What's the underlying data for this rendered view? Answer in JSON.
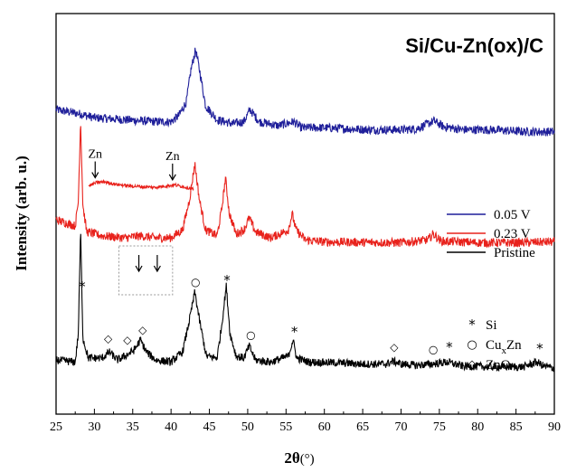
{
  "chart_data": {
    "type": "line",
    "title": "Si/Cu-Zn(ox)/C",
    "xlabel": "2θ(°)",
    "xlabel_parts": {
      "main": "2θ",
      "unit": "(°)"
    },
    "ylabel": "Intensity (arb. u.)",
    "xlim": [
      25,
      90
    ],
    "xticks": [
      25,
      30,
      35,
      40,
      45,
      50,
      55,
      60,
      65,
      70,
      75,
      80,
      85,
      90
    ],
    "grid": false,
    "legend_position": "right",
    "legend": [
      {
        "label": "0.05 V",
        "color": "#1f1f9a"
      },
      {
        "label": "0.23 V",
        "color": "#e8221c"
      },
      {
        "label": "Pristine",
        "color": "#000000"
      }
    ],
    "series": [
      {
        "name": "0.05 V",
        "color": "#1f1f9a",
        "baseline": 7.1,
        "noise": 0.11,
        "x": [
          25,
          28,
          30,
          34,
          38,
          40,
          41,
          42,
          42.6,
          43.2,
          43.8,
          44.5,
          46,
          48,
          49.5,
          50.3,
          51.5,
          54,
          56,
          57,
          60,
          66,
          70,
          72,
          73.5,
          74.3,
          75.5,
          78,
          82,
          86,
          90
        ],
        "y": [
          7.6,
          7.5,
          7.4,
          7.35,
          7.3,
          7.3,
          7.45,
          7.8,
          8.6,
          9.1,
          8.5,
          7.7,
          7.35,
          7.25,
          7.3,
          7.6,
          7.3,
          7.2,
          7.3,
          7.15,
          7.15,
          7.1,
          7.1,
          7.12,
          7.25,
          7.32,
          7.18,
          7.1,
          7.1,
          7.05,
          7.05
        ]
      },
      {
        "name": "0.23 V",
        "color": "#e8221c",
        "baseline": 4.3,
        "noise": 0.11,
        "x": [
          25,
          27.5,
          27.9,
          28.2,
          28.5,
          29,
          31,
          34,
          36,
          38,
          40,
          41.5,
          42.4,
          43.1,
          43.7,
          44.5,
          46,
          46.6,
          47.1,
          47.6,
          48.5,
          49.5,
          50.2,
          51,
          53,
          55.3,
          55.8,
          56.3,
          57.5,
          60,
          70,
          73.5,
          74.2,
          75.2,
          80,
          85,
          90
        ],
        "y": [
          4.85,
          4.7,
          5.3,
          7.35,
          5.2,
          4.55,
          4.45,
          4.4,
          4.45,
          4.4,
          4.4,
          4.6,
          5.35,
          6.25,
          5.35,
          4.6,
          4.45,
          5.1,
          5.9,
          5.0,
          4.5,
          4.6,
          4.9,
          4.55,
          4.4,
          4.6,
          5.0,
          4.6,
          4.35,
          4.3,
          4.28,
          4.35,
          4.5,
          4.32,
          4.28,
          4.28,
          4.3
        ]
      },
      {
        "name": "Pristine",
        "color": "#000000",
        "baseline": 1.2,
        "noise": 0.1,
        "x": [
          25,
          27.5,
          27.9,
          28.2,
          28.5,
          29.2,
          31,
          32,
          33,
          34,
          35.2,
          36,
          36.8,
          38,
          40,
          41.5,
          42.4,
          43.1,
          43.7,
          44.6,
          46,
          46.6,
          47.2,
          47.7,
          48.5,
          49.5,
          50.2,
          51,
          53,
          55.3,
          55.9,
          56.4,
          58,
          62,
          65,
          68,
          69,
          70,
          72,
          74,
          76,
          78,
          82,
          86,
          87.7,
          88.6,
          90
        ],
        "y": [
          1.35,
          1.3,
          2.0,
          4.6,
          1.9,
          1.4,
          1.4,
          1.55,
          1.35,
          1.45,
          1.6,
          1.85,
          1.55,
          1.35,
          1.3,
          1.55,
          2.35,
          3.05,
          2.35,
          1.45,
          1.4,
          2.2,
          3.2,
          2.0,
          1.45,
          1.4,
          1.7,
          1.35,
          1.3,
          1.45,
          1.85,
          1.4,
          1.3,
          1.28,
          1.25,
          1.25,
          1.32,
          1.25,
          1.22,
          1.25,
          1.3,
          1.2,
          1.18,
          1.18,
          1.3,
          1.2,
          1.15
        ]
      }
    ],
    "inset": {
      "color": "#e8221c",
      "x_range": [
        32,
        40
      ],
      "x": [
        32,
        32.6,
        33.2,
        34,
        35,
        36,
        37,
        38,
        38.6,
        39.2,
        40
      ],
      "y": [
        5.7,
        5.78,
        5.8,
        5.74,
        5.7,
        5.68,
        5.66,
        5.7,
        5.72,
        5.68,
        5.62
      ],
      "noise": 0.04,
      "arrows": [
        {
          "label": "Zn",
          "x": 32.5
        },
        {
          "label": "Zn",
          "x": 38.4
        }
      ]
    },
    "box": {
      "x_range": [
        33.2,
        40.2
      ]
    },
    "box_arrows": [
      35.8,
      38.2
    ],
    "markers_legend": [
      {
        "symbol": "*",
        "label": "Si"
      },
      {
        "symbol": "○",
        "label": "Cu",
        "label_sub": "x",
        "label_suffix": "Zn"
      },
      {
        "symbol": "◇",
        "label": "ZnO"
      }
    ],
    "markers": [
      {
        "symbol": "*",
        "x": 28.4
      },
      {
        "symbol": "◇",
        "x": 31.8
      },
      {
        "symbol": "◇",
        "x": 34.3
      },
      {
        "symbol": "◇",
        "x": 36.3
      },
      {
        "symbol": "○",
        "x": 43.2
      },
      {
        "symbol": "*",
        "x": 47.3
      },
      {
        "symbol": "○",
        "x": 50.4
      },
      {
        "symbol": "*",
        "x": 56.1
      },
      {
        "symbol": "◇",
        "x": 69.1
      },
      {
        "symbol": "○",
        "x": 74.2
      },
      {
        "symbol": "*",
        "x": 76.3
      },
      {
        "symbol": "*",
        "x": 88.1
      }
    ]
  }
}
